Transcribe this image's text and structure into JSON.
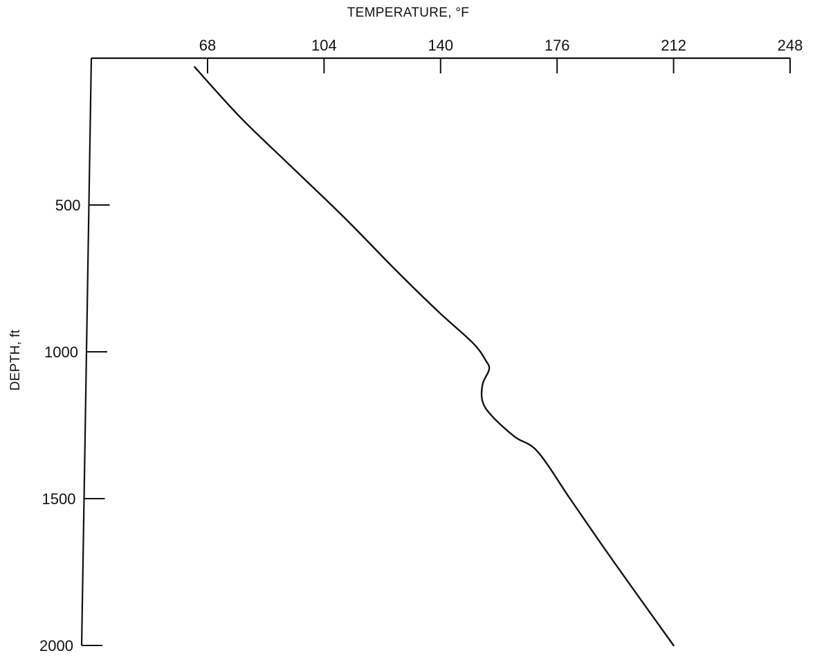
{
  "chart_data": {
    "type": "line",
    "xlabel": "TEMPERATURE, °F",
    "ylabel": "DEPTH, ft",
    "x_axis_position": "top",
    "y_axis_inverted": true,
    "xlim": [
      40,
      248
    ],
    "ylim": [
      0,
      2000
    ],
    "x_ticks": [
      68,
      104,
      140,
      176,
      212,
      248
    ],
    "y_ticks": [
      500,
      1000,
      1500,
      2000
    ],
    "grid": false,
    "legend": "none",
    "series": [
      {
        "points": [
          {
            "x": 64,
            "y": 30
          },
          {
            "x": 78,
            "y": 200
          },
          {
            "x": 93,
            "y": 360
          },
          {
            "x": 110,
            "y": 540
          },
          {
            "x": 126,
            "y": 720
          },
          {
            "x": 139,
            "y": 860
          },
          {
            "x": 150,
            "y": 970
          },
          {
            "x": 154,
            "y": 1030
          },
          {
            "x": 155,
            "y": 1060
          },
          {
            "x": 153,
            "y": 1110
          },
          {
            "x": 153,
            "y": 1170
          },
          {
            "x": 156,
            "y": 1220
          },
          {
            "x": 163,
            "y": 1290
          },
          {
            "x": 170,
            "y": 1340
          },
          {
            "x": 180,
            "y": 1500
          },
          {
            "x": 190,
            "y": 1660
          },
          {
            "x": 199,
            "y": 1800
          },
          {
            "x": 212,
            "y": 2000
          }
        ]
      }
    ]
  }
}
